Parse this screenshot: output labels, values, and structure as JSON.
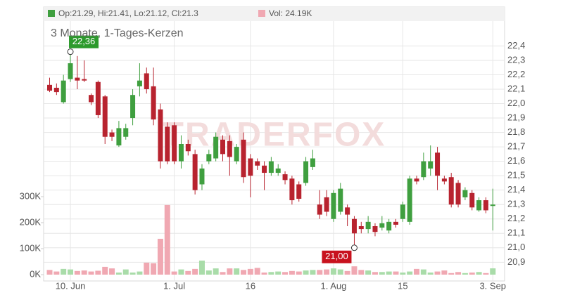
{
  "chart_data": {
    "type": "candlestick",
    "title": "3 Monate, 1-Tages-Kerzen",
    "watermark": "TRADERFOX",
    "header": {
      "ohlc": "Op:21.29, Hi:21.41, Lo:21.12, Cl:21.3",
      "volume": "Vol: 24.19K"
    },
    "annotations": {
      "max_label": "22,36",
      "min_label": "21,00"
    },
    "up_color": "#3f9f3f",
    "down_color": "#b8232f",
    "volume_up_color": "#a9dca9",
    "volume_down_color": "#f0a8b2",
    "grid": true,
    "categories": [
      null,
      null,
      null,
      "10. Jun",
      null,
      null,
      null,
      null,
      null,
      null,
      null,
      null,
      null,
      null,
      null,
      null,
      null,
      null,
      "1. Jul",
      null,
      null,
      null,
      null,
      null,
      null,
      null,
      null,
      null,
      null,
      "16",
      null,
      null,
      null,
      null,
      null,
      null,
      null,
      null,
      null,
      null,
      null,
      "1. Aug",
      null,
      null,
      null,
      null,
      null,
      null,
      null,
      null,
      null,
      "15",
      null,
      null,
      null,
      null,
      null,
      null,
      null,
      null,
      null,
      null,
      null,
      null,
      "3. Sep"
    ],
    "open": [
      22.13,
      22.11,
      22.01,
      22.17,
      22.18,
      22.17,
      22.06,
      22.15,
      22.05,
      21.8,
      21.71,
      21.77,
      21.9,
      22.12,
      22.21,
      22.12,
      21.96,
      21.84,
      21.85,
      21.6,
      21.72,
      21.65,
      21.44,
      21.6,
      21.62,
      21.75,
      21.74,
      21.6,
      21.75,
      21.62,
      21.6,
      21.57,
      21.52,
      21.52,
      21.51,
      21.48,
      21.44,
      21.45,
      21.56,
      21.3,
      21.35,
      21.2,
      21.25,
      21.28,
      21.2,
      21.15,
      21.13,
      21.15,
      21.14,
      21.12,
      21.18,
      21.2,
      21.18,
      21.48,
      21.49,
      21.55,
      21.66,
      21.48,
      21.49,
      21.45,
      21.35,
      21.38,
      21.26,
      21.33,
      21.29
    ],
    "high": [
      22.18,
      22.14,
      22.2,
      22.36,
      22.33,
      22.3,
      22.07,
      22.16,
      22.06,
      21.82,
      21.88,
      21.86,
      22.1,
      22.28,
      22.25,
      22.25,
      22.0,
      21.87,
      21.87,
      21.78,
      21.75,
      21.68,
      21.58,
      21.68,
      21.8,
      21.78,
      21.78,
      21.72,
      21.8,
      21.65,
      21.62,
      21.6,
      21.63,
      21.58,
      21.53,
      21.5,
      21.46,
      21.63,
      21.68,
      21.4,
      21.4,
      21.4,
      21.45,
      21.3,
      21.22,
      21.18,
      21.22,
      21.17,
      21.22,
      21.2,
      21.2,
      21.32,
      21.5,
      21.5,
      21.66,
      21.71,
      21.7,
      21.5,
      21.52,
      21.47,
      21.42,
      21.4,
      21.35,
      21.35,
      21.41
    ],
    "low": [
      22.08,
      22.06,
      22.0,
      22.15,
      22.1,
      22.15,
      21.99,
      21.9,
      21.72,
      21.74,
      21.7,
      21.75,
      21.85,
      22.05,
      22.07,
      21.85,
      21.55,
      21.58,
      21.58,
      21.55,
      21.64,
      21.37,
      21.4,
      21.58,
      21.6,
      21.6,
      21.5,
      21.58,
      21.45,
      21.35,
      21.54,
      21.4,
      21.5,
      21.5,
      21.44,
      21.3,
      21.32,
      21.43,
      21.54,
      21.2,
      21.22,
      21.18,
      21.23,
      21.15,
      21.0,
      21.1,
      21.1,
      21.08,
      21.12,
      21.1,
      21.14,
      21.18,
      21.16,
      21.44,
      21.47,
      21.5,
      21.4,
      21.44,
      21.28,
      21.28,
      21.33,
      21.26,
      21.25,
      21.24,
      21.12
    ],
    "close": [
      22.09,
      22.08,
      22.16,
      22.28,
      22.16,
      22.16,
      22.01,
      21.92,
      21.77,
      21.77,
      21.83,
      21.83,
      22.06,
      22.16,
      22.1,
      21.89,
      21.6,
      21.6,
      21.6,
      21.72,
      21.67,
      21.4,
      21.55,
      21.65,
      21.77,
      21.65,
      21.63,
      21.7,
      21.49,
      21.5,
      21.57,
      21.52,
      21.6,
      21.55,
      21.47,
      21.33,
      21.34,
      21.6,
      21.62,
      21.23,
      21.25,
      21.38,
      21.41,
      21.23,
      21.1,
      21.13,
      21.18,
      21.11,
      21.17,
      21.18,
      21.16,
      21.3,
      21.48,
      21.46,
      21.6,
      21.6,
      21.5,
      21.46,
      21.3,
      21.3,
      21.4,
      21.28,
      21.33,
      21.26,
      21.3
    ],
    "volume": [
      18,
      12,
      22,
      20,
      14,
      16,
      12,
      15,
      30,
      24,
      8,
      20,
      8,
      12,
      46,
      44,
      138,
      268,
      12,
      20,
      14,
      22,
      54,
      16,
      24,
      10,
      24,
      24,
      18,
      22,
      26,
      8,
      10,
      12,
      10,
      14,
      12,
      16,
      18,
      18,
      20,
      24,
      20,
      14,
      32,
      18,
      16,
      10,
      10,
      12,
      12,
      8,
      12,
      22,
      20,
      8,
      12,
      16,
      6,
      10,
      6,
      8,
      10,
      6,
      24.19
    ],
    "ylim": [
      20.77,
      22.67
    ],
    "yticks": [
      {
        "value": 20.9,
        "label": "20,9"
      },
      {
        "value": 21.0,
        "label": "21,0"
      },
      {
        "value": 21.1,
        "label": "21,1"
      },
      {
        "value": 21.2,
        "label": "21,2"
      },
      {
        "value": 21.3,
        "label": "21,3"
      },
      {
        "value": 21.4,
        "label": "21,4"
      },
      {
        "value": 21.5,
        "label": "21,5"
      },
      {
        "value": 21.6,
        "label": "21,6"
      },
      {
        "value": 21.7,
        "label": "21,7"
      },
      {
        "value": 21.8,
        "label": "21,8"
      },
      {
        "value": 21.9,
        "label": "21,9"
      },
      {
        "value": 22.0,
        "label": "22,0"
      },
      {
        "value": 22.1,
        "label": "22,1"
      },
      {
        "value": 22.2,
        "label": "22,2"
      },
      {
        "value": 22.3,
        "label": "22,3"
      },
      {
        "value": 22.4,
        "label": "22,4"
      }
    ],
    "y2lim": [
      0,
      1030
    ],
    "y2ticks": [
      {
        "value": 0,
        "label": "0K"
      },
      {
        "value": 100,
        "label": "100K"
      },
      {
        "value": 200,
        "label": "200K"
      },
      {
        "value": 300,
        "label": "300K"
      }
    ]
  }
}
